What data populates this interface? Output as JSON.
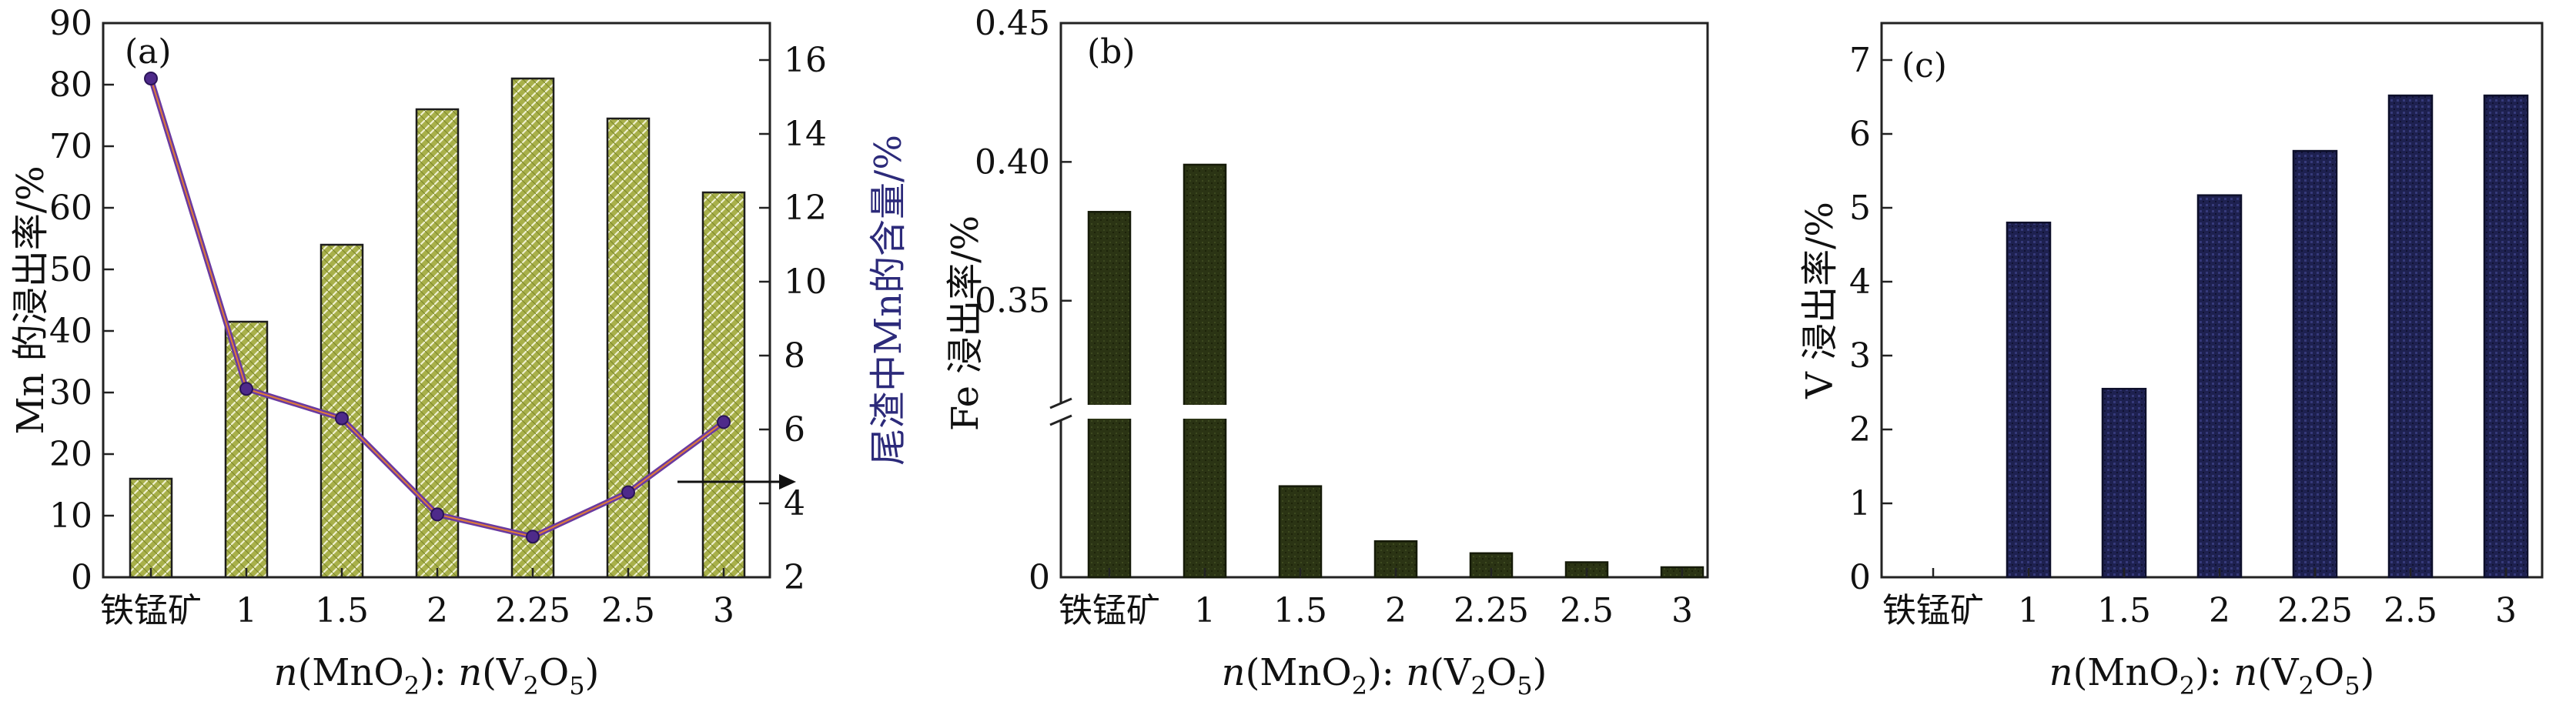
{
  "chart_data": [
    {
      "panel": "(a)",
      "type": "bar+line",
      "categories": [
        "铁锰矿",
        "1",
        "1.5",
        "2",
        "2.25",
        "2.5",
        "3"
      ],
      "xlabel": [
        "n",
        "(MnO",
        "2",
        "): ",
        "n",
        "(V",
        "2",
        "O",
        "5",
        ")"
      ],
      "ylabel": "Mn 的浸出率/%",
      "y2label": "尾渣中Mn的含量/%",
      "ylim": [
        0,
        90
      ],
      "yticks": [
        "0",
        "10",
        "20",
        "30",
        "40",
        "50",
        "60",
        "70",
        "80",
        "90"
      ],
      "y2lim": [
        2,
        17
      ],
      "y2ticks": [
        "2",
        "4",
        "6",
        "8",
        "10",
        "12",
        "14",
        "16"
      ],
      "bar_values": [
        16,
        41.5,
        54,
        76,
        81,
        74.5,
        62.5
      ],
      "line_values": [
        15.5,
        7.1,
        6.3,
        3.7,
        3.1,
        4.3,
        6.2
      ],
      "colors": {
        "bar": "#a8b04a",
        "bar_hatch": "#f0f2d6",
        "line": "#6a3aa0",
        "line_inner": "#e07a38",
        "marker": "#4e2a8a"
      }
    },
    {
      "panel": "(b)",
      "type": "bar",
      "categories": [
        "铁锰矿",
        "1",
        "1.5",
        "2",
        "2.25",
        "2.5",
        "3"
      ],
      "xlabel": [
        "n",
        "(MnO",
        "2",
        "): ",
        "n",
        "(V",
        "2",
        "O",
        "5",
        ")"
      ],
      "ylabel": "Fe 浸出率/%",
      "yticks_upper": [
        "0.35",
        "0.40",
        "0.45"
      ],
      "yticks_lower": [
        "0"
      ],
      "upper_range": [
        0.31,
        0.45
      ],
      "values": [
        0.382,
        0.399,
        0.091,
        0.036,
        0.024,
        0.015,
        0.01
      ],
      "colors": {
        "bar": "#2b3414"
      }
    },
    {
      "panel": "(c)",
      "type": "bar",
      "categories": [
        "铁锰矿",
        "1",
        "1.5",
        "2",
        "2.25",
        "2.5",
        "3"
      ],
      "xlabel": [
        "n",
        "(MnO",
        "2",
        "): ",
        "n",
        "(V",
        "2",
        "O",
        "5",
        ")"
      ],
      "ylabel": "V 浸出率/%",
      "ylim": [
        0,
        7.5
      ],
      "yticks": [
        "0",
        "1",
        "2",
        "3",
        "4",
        "5",
        "6",
        "7"
      ],
      "values": [
        0,
        4.8,
        2.55,
        5.17,
        5.77,
        6.52,
        6.52
      ],
      "colors": {
        "bar": "#1e2150"
      }
    }
  ]
}
